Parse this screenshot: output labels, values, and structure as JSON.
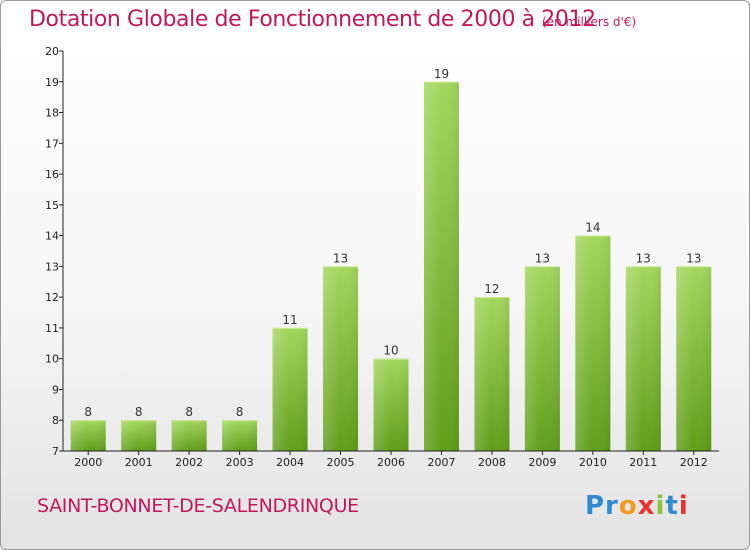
{
  "header": {
    "title": "Dotation Globale de Fonctionnement de 2000 à 2012",
    "subtitle": "(en milliers d'€)"
  },
  "footer": {
    "commune": "SAINT-BONNET-DE-SALENDRINQUE",
    "logo": [
      "Pr",
      "o",
      "x",
      "i",
      "t",
      "i"
    ]
  },
  "colors": {
    "title": "#c2185b",
    "bar_light": "#a4d65e",
    "bar_dark": "#5f9e1a",
    "axis": "#222222"
  },
  "chart_data": {
    "type": "bar",
    "title": "Dotation Globale de Fonctionnement de 2000 à 2012",
    "subtitle": "(en milliers d'€)",
    "xlabel": "",
    "ylabel": "",
    "categories": [
      "2000",
      "2001",
      "2002",
      "2003",
      "2004",
      "2005",
      "2006",
      "2007",
      "2008",
      "2009",
      "2010",
      "2011",
      "2012"
    ],
    "values": [
      8,
      8,
      8,
      8,
      11,
      13,
      10,
      19,
      12,
      13,
      14,
      13,
      13
    ],
    "ylim": [
      7,
      20
    ],
    "yticks": [
      7,
      8,
      9,
      10,
      11,
      12,
      13,
      14,
      15,
      16,
      17,
      18,
      19,
      20
    ],
    "grid": false,
    "legend": "none"
  }
}
